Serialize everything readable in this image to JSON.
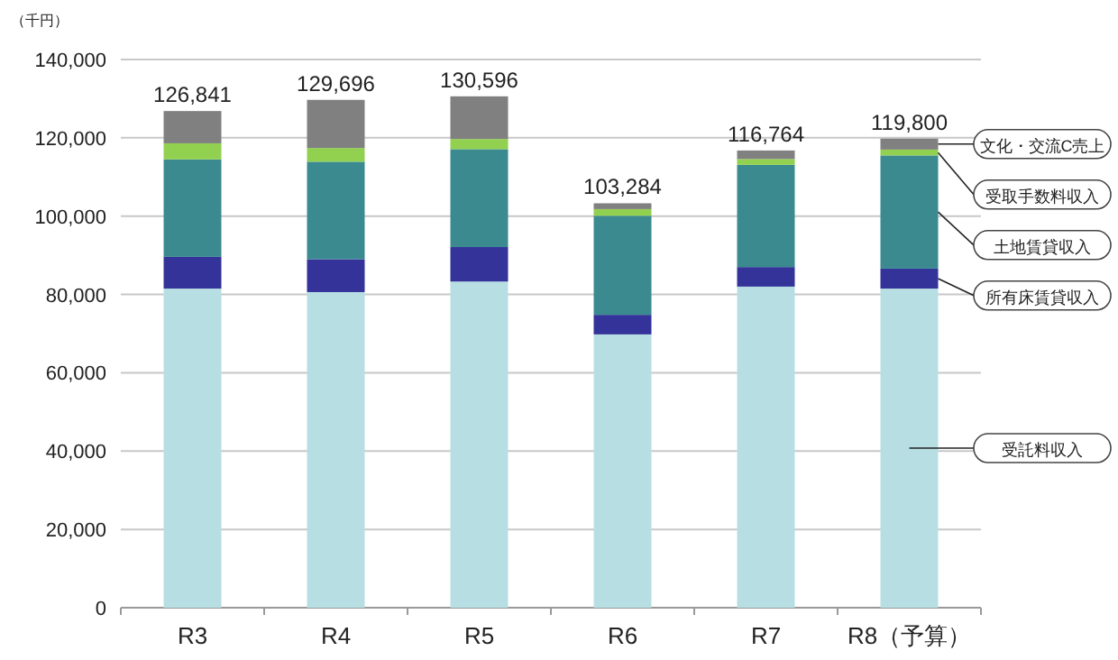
{
  "chart_data": {
    "type": "bar",
    "stacked": true,
    "ylabel": "（千円）",
    "categories": [
      "R3",
      "R4",
      "R5",
      "R6",
      "R7",
      "R8（予算）"
    ],
    "series": [
      {
        "name": "受託料収入",
        "color": "#b7dfe3",
        "values": [
          81500,
          80600,
          83300,
          69800,
          82000,
          81500
        ]
      },
      {
        "name": "所有床賃貸収入",
        "color": "#333399",
        "values": [
          8100,
          8400,
          8800,
          5000,
          5000,
          5100
        ]
      },
      {
        "name": "土地賃貸収入",
        "color": "#3a8a8f",
        "values": [
          24900,
          24900,
          25000,
          25300,
          26100,
          28900
        ]
      },
      {
        "name": "受取手数料収入",
        "color": "#92d050",
        "values": [
          4100,
          3500,
          2600,
          1700,
          1500,
          1500
        ]
      },
      {
        "name": "文化・交流C売上",
        "color": "#808080",
        "values": [
          8241,
          12296,
          10896,
          1484,
          2164,
          2800
        ]
      }
    ],
    "totals": [
      "126,841",
      "129,696",
      "130,596",
      "103,284",
      "116,764",
      "119,800"
    ],
    "ylim": [
      0,
      140000
    ],
    "yticks": [
      0,
      {
        "value": 20000,
        "label": "20,000"
      },
      {
        "value": 40000,
        "label": "40,000"
      },
      {
        "value": 60000,
        "label": "60,000"
      },
      {
        "value": 80000,
        "label": "80,000"
      },
      {
        "value": 100000,
        "label": "100,000"
      },
      {
        "value": 120000,
        "label": "120,000"
      },
      {
        "value": 140000,
        "label": "140,000"
      }
    ],
    "grid": "y",
    "legend": "right"
  }
}
